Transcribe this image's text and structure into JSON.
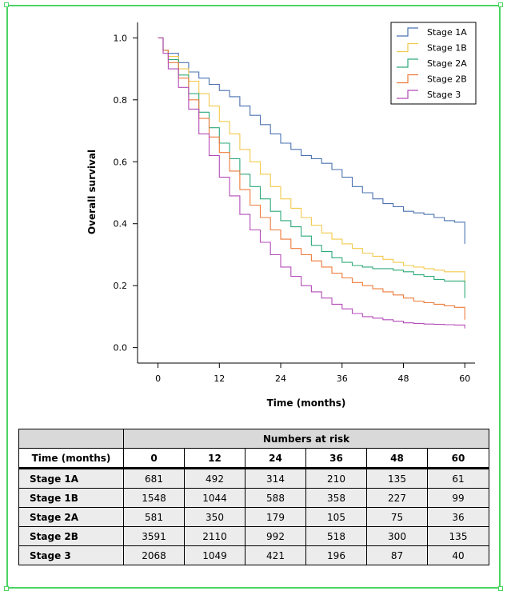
{
  "chart_data": {
    "type": "line",
    "step": true,
    "xlabel": "Time (months)",
    "ylabel": "Overall survival",
    "xlim": [
      -4,
      62
    ],
    "ylim": [
      -0.05,
      1.05
    ],
    "xticks": [
      0,
      12,
      24,
      36,
      48,
      60
    ],
    "yticks": [
      0.0,
      0.2,
      0.4,
      0.6,
      0.8,
      1.0
    ],
    "ytick_labels": [
      "0.0",
      "0.2",
      "0.4",
      "0.6",
      "0.8",
      "1.0"
    ],
    "legend_position": "top-right",
    "series": [
      {
        "name": "Stage 1A",
        "color": "#4a72b0",
        "x": [
          0,
          1,
          2,
          4,
          6,
          8,
          10,
          12,
          14,
          16,
          18,
          20,
          22,
          24,
          26,
          28,
          30,
          32,
          34,
          36,
          38,
          40,
          42,
          44,
          46,
          48,
          50,
          52,
          54,
          56,
          58,
          60,
          60
        ],
        "y": [
          1.0,
          0.96,
          0.95,
          0.92,
          0.89,
          0.87,
          0.85,
          0.83,
          0.81,
          0.78,
          0.75,
          0.72,
          0.69,
          0.66,
          0.64,
          0.62,
          0.61,
          0.595,
          0.575,
          0.55,
          0.52,
          0.5,
          0.48,
          0.465,
          0.455,
          0.44,
          0.435,
          0.43,
          0.42,
          0.41,
          0.405,
          0.39,
          0.335
        ]
      },
      {
        "name": "Stage 1B",
        "color": "#f2c94c",
        "x": [
          0,
          1,
          2,
          4,
          6,
          8,
          10,
          12,
          14,
          16,
          18,
          20,
          22,
          24,
          26,
          28,
          30,
          32,
          34,
          36,
          38,
          40,
          42,
          44,
          46,
          48,
          50,
          52,
          54,
          56,
          58,
          60,
          60
        ],
        "y": [
          1.0,
          0.96,
          0.94,
          0.9,
          0.86,
          0.82,
          0.78,
          0.73,
          0.69,
          0.64,
          0.6,
          0.56,
          0.52,
          0.48,
          0.45,
          0.42,
          0.395,
          0.37,
          0.35,
          0.335,
          0.32,
          0.305,
          0.295,
          0.285,
          0.275,
          0.265,
          0.26,
          0.255,
          0.25,
          0.245,
          0.245,
          0.24,
          0.21
        ]
      },
      {
        "name": "Stage 2A",
        "color": "#2eaa7a",
        "x": [
          0,
          1,
          2,
          4,
          6,
          8,
          10,
          12,
          14,
          16,
          18,
          20,
          22,
          24,
          26,
          28,
          30,
          32,
          34,
          36,
          38,
          40,
          42,
          44,
          46,
          48,
          50,
          52,
          54,
          56,
          58,
          60,
          60
        ],
        "y": [
          1.0,
          0.96,
          0.93,
          0.88,
          0.82,
          0.76,
          0.71,
          0.66,
          0.61,
          0.56,
          0.52,
          0.48,
          0.44,
          0.41,
          0.39,
          0.36,
          0.33,
          0.31,
          0.29,
          0.275,
          0.265,
          0.26,
          0.255,
          0.255,
          0.25,
          0.245,
          0.235,
          0.23,
          0.22,
          0.215,
          0.215,
          0.21,
          0.16
        ]
      },
      {
        "name": "Stage 2B",
        "color": "#ee7b3a",
        "x": [
          0,
          1,
          2,
          4,
          6,
          8,
          10,
          12,
          14,
          16,
          18,
          20,
          22,
          24,
          26,
          28,
          30,
          32,
          34,
          36,
          38,
          40,
          42,
          44,
          46,
          48,
          50,
          52,
          54,
          56,
          58,
          60,
          60
        ],
        "y": [
          1.0,
          0.96,
          0.92,
          0.87,
          0.8,
          0.74,
          0.68,
          0.63,
          0.57,
          0.51,
          0.46,
          0.42,
          0.38,
          0.35,
          0.32,
          0.3,
          0.28,
          0.26,
          0.24,
          0.225,
          0.21,
          0.2,
          0.19,
          0.18,
          0.17,
          0.16,
          0.15,
          0.145,
          0.14,
          0.135,
          0.13,
          0.12,
          0.09
        ]
      },
      {
        "name": "Stage 3",
        "color": "#b44bb8",
        "x": [
          0,
          1,
          2,
          4,
          6,
          8,
          10,
          12,
          14,
          16,
          18,
          20,
          22,
          24,
          26,
          28,
          30,
          32,
          34,
          36,
          38,
          40,
          42,
          44,
          46,
          48,
          50,
          52,
          54,
          56,
          58,
          60,
          60
        ],
        "y": [
          1.0,
          0.95,
          0.9,
          0.84,
          0.77,
          0.69,
          0.62,
          0.55,
          0.49,
          0.43,
          0.38,
          0.34,
          0.3,
          0.26,
          0.23,
          0.2,
          0.18,
          0.16,
          0.14,
          0.125,
          0.11,
          0.1,
          0.095,
          0.09,
          0.085,
          0.08,
          0.078,
          0.076,
          0.075,
          0.074,
          0.073,
          0.072,
          0.062
        ]
      }
    ]
  },
  "risk_table": {
    "group_header": "Numbers at risk",
    "first_col_header": "Time (months)",
    "time_headers": [
      "0",
      "12",
      "24",
      "36",
      "48",
      "60"
    ],
    "rows": [
      {
        "stage": "Stage 1A",
        "values": [
          "681",
          "492",
          "314",
          "210",
          "135",
          "61"
        ]
      },
      {
        "stage": "Stage 1B",
        "values": [
          "1548",
          "1044",
          "588",
          "358",
          "227",
          "99"
        ]
      },
      {
        "stage": "Stage 2A",
        "values": [
          "581",
          "350",
          "179",
          "105",
          "75",
          "36"
        ]
      },
      {
        "stage": "Stage 2B",
        "values": [
          "3591",
          "2110",
          "992",
          "518",
          "300",
          "135"
        ]
      },
      {
        "stage": "Stage 3",
        "values": [
          "2068",
          "1049",
          "421",
          "196",
          "87",
          "40"
        ]
      }
    ]
  },
  "frame_color": "#4cd464"
}
